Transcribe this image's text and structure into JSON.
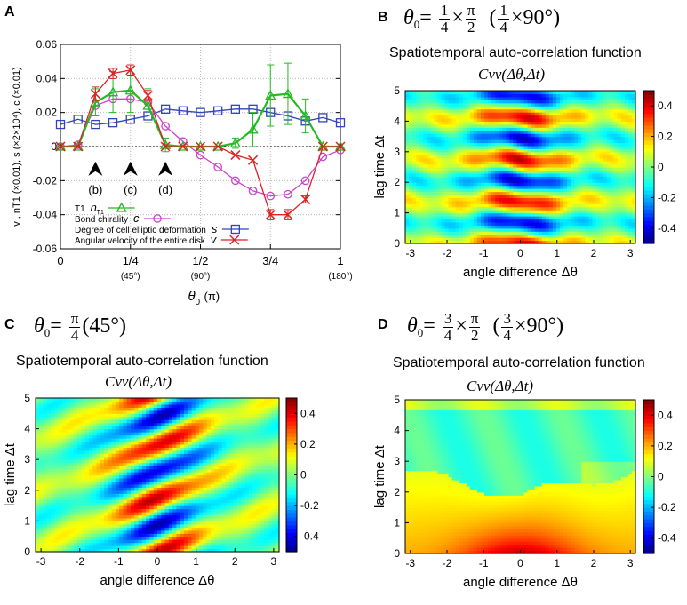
{
  "panels": {
    "A": {
      "label": "A",
      "chart_data": {
        "type": "line",
        "x": [
          0,
          0.0625,
          0.125,
          0.1875,
          0.25,
          0.3125,
          0.375,
          0.4375,
          0.5,
          0.5625,
          0.625,
          0.6875,
          0.75,
          0.8125,
          0.875,
          0.9375,
          1.0
        ],
        "series": [
          {
            "name": "T1",
            "symbol": "n",
            "sym_sub": "T1",
            "color": "#22bb22",
            "marker": "triangle",
            "values": [
              0,
              0,
              0.026,
              0.032,
              0.033,
              0.024,
              0.001,
              0,
              0,
              0,
              0.002,
              0.01,
              0.03,
              0.031,
              0.018,
              0,
              0
            ],
            "errors": [
              0,
              0,
              0.008,
              0.012,
              0.013,
              0.01,
              0.004,
              0,
              0,
              0,
              0.003,
              0.01,
              0.018,
              0.018,
              0.01,
              0,
              0
            ]
          },
          {
            "name": "Bond chirality",
            "symbol": "c",
            "color": "#cc44cc",
            "marker": "circle",
            "values": [
              0,
              0.001,
              0.024,
              0.028,
              0.028,
              0.026,
              0.012,
              0.003,
              -0.005,
              -0.012,
              -0.02,
              -0.026,
              -0.029,
              -0.028,
              -0.02,
              -0.006,
              -0.002
            ]
          },
          {
            "name": "Degree of cell elliptic deformation",
            "symbol": "s",
            "color": "#3344bb",
            "marker": "square",
            "values": [
              0.013,
              0.016,
              0.013,
              0.014,
              0.016,
              0.018,
              0.022,
              0.021,
              0.02,
              0.021,
              0.022,
              0.022,
              0.02,
              0.018,
              0.015,
              0.017,
              0.014
            ]
          },
          {
            "name": "Angular velocity of the entire disk",
            "symbol": "v",
            "color": "#dd2222",
            "marker": "x",
            "values": [
              0,
              0,
              0.031,
              0.043,
              0.045,
              0.03,
              0,
              0,
              0,
              0,
              -0.005,
              -0.008,
              -0.04,
              -0.04,
              -0.031,
              0,
              0
            ],
            "errors": [
              0,
              0,
              0.004,
              0.003,
              0.003,
              0.003,
              0,
              0,
              0,
              0,
              0,
              0,
              0.003,
              0.003,
              0.002,
              0,
              0
            ]
          }
        ],
        "xlim": [
          0,
          1
        ],
        "ylim": [
          -0.06,
          0.06
        ],
        "xticks": [
          {
            "v": 0,
            "label": "0",
            "sub": ""
          },
          {
            "v": 0.25,
            "label": "1/4",
            "sub": "(45°)"
          },
          {
            "v": 0.5,
            "label": "1/2",
            "sub": "(90°)"
          },
          {
            "v": 0.75,
            "label": "3/4",
            "sub": ""
          },
          {
            "v": 1,
            "label": "1",
            "sub": "(180°)"
          }
        ],
        "yticks": [
          -0.06,
          -0.04,
          -0.02,
          0,
          0.02,
          0.04,
          0.06
        ],
        "ytick_labels": [
          "-0.06",
          "-0.04",
          "-0.02",
          "0",
          "0.02",
          "0.04",
          "0.06"
        ],
        "xlabel": "θ",
        "xlabel_sub": "0",
        "xlabel_unit": "(π)",
        "ylabel": "v , nT1 (×0.01), s (×2×10⁴), c (×0.01)",
        "arrows": [
          {
            "x": 0.125,
            "label": "(b)"
          },
          {
            "x": 0.25,
            "label": "(c)"
          },
          {
            "x": 0.375,
            "label": "(d)"
          }
        ],
        "legend_position": "bottom-left",
        "grid": true
      }
    },
    "B": {
      "label": "B",
      "formula": {
        "theta": "θ",
        "sub": "0",
        "eq": "=",
        "frac1_num": "1",
        "frac1_den": "4",
        "times": "×",
        "frac2_num": "π",
        "frac2_den": "2",
        "paren_open": "(",
        "frac3_num": "1",
        "frac3_den": "4",
        "deg": "×90°)"
      },
      "title": "Spatiotemporal auto-correlation function",
      "subtitle": "Cvv(Δθ,Δt)",
      "chart_data": {
        "type": "heatmap",
        "pattern": "horizontal-bands",
        "xlim": [
          -3.14,
          3.14
        ],
        "ylim": [
          0,
          5
        ],
        "xticks": [
          -3,
          -2,
          -1,
          0,
          1,
          2,
          3
        ],
        "yticks": [
          0,
          1,
          2,
          3,
          4,
          5
        ],
        "colorbar_ticks": [
          -0.4,
          -0.2,
          0,
          0.2,
          0.4
        ],
        "colorbar_labels": [
          "-0.4",
          "-0.2",
          "0",
          "0.2",
          "0.4"
        ],
        "clim": [
          -0.5,
          0.5
        ],
        "xlabel": "angle difference  Δθ",
        "ylabel": "lag time  Δt"
      }
    },
    "C": {
      "label": "C",
      "formula": {
        "theta": "θ",
        "sub": "0",
        "eq": "=",
        "frac1_num": "π",
        "frac1_den": "4",
        "paren": "(45°)"
      },
      "title": "Spatiotemporal auto-correlation function",
      "subtitle": "Cvv(Δθ,Δt)",
      "chart_data": {
        "type": "heatmap",
        "pattern": "diagonal-bands",
        "xlim": [
          -3.14,
          3.14
        ],
        "ylim": [
          0,
          5
        ],
        "xticks": [
          -3,
          -2,
          -1,
          0,
          1,
          2,
          3
        ],
        "yticks": [
          0,
          1,
          2,
          3,
          4,
          5
        ],
        "colorbar_ticks": [
          -0.4,
          -0.2,
          0,
          0.2,
          0.4
        ],
        "colorbar_labels": [
          "-0.4",
          "-0.2",
          "0",
          "0.2",
          "0.4"
        ],
        "clim": [
          -0.5,
          0.5
        ],
        "xlabel": "angle difference  Δθ",
        "ylabel": "lag time  Δt"
      }
    },
    "D": {
      "label": "D",
      "formula": {
        "theta": "θ",
        "sub": "0",
        "eq": "=",
        "frac1_num": "3",
        "frac1_den": "4",
        "times": "×",
        "frac2_num": "π",
        "frac2_den": "2",
        "paren_open": "(",
        "frac3_num": "3",
        "frac3_den": "4",
        "deg": "×90°)"
      },
      "title": "Spatiotemporal auto-correlation function",
      "subtitle": "Cvv(Δθ,Δt)",
      "chart_data": {
        "type": "heatmap",
        "pattern": "decay",
        "xlim": [
          -3.14,
          3.14
        ],
        "ylim": [
          0,
          5
        ],
        "xticks": [
          -3,
          -2,
          -1,
          0,
          1,
          2,
          3
        ],
        "yticks": [
          0,
          1,
          2,
          3,
          4,
          5
        ],
        "colorbar_ticks": [
          -0.4,
          -0.2,
          0,
          0.2,
          0.4
        ],
        "colorbar_labels": [
          "-0.4",
          "-0.2",
          "0",
          "0.2",
          "0.4"
        ],
        "clim": [
          -0.5,
          0.5
        ],
        "xlabel": "angle difference  Δθ",
        "ylabel": "lag time  Δt"
      }
    }
  }
}
